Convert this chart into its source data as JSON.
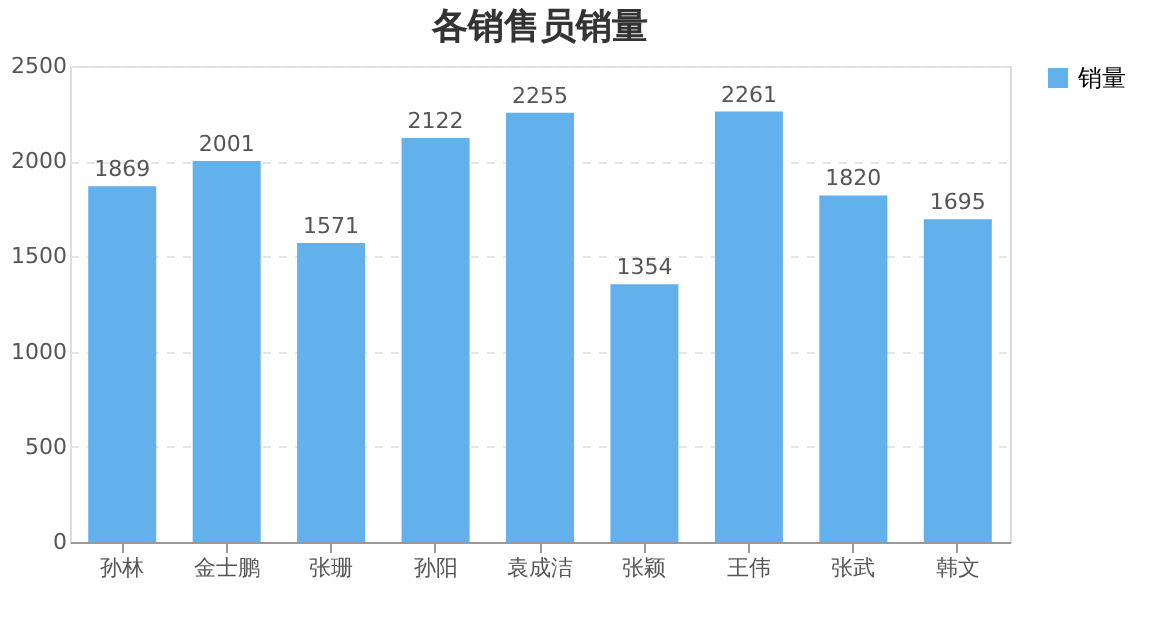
{
  "chart_data": {
    "type": "bar",
    "title": "各销售员销量",
    "categories": [
      "孙林",
      "金士鹏",
      "张珊",
      "孙阳",
      "袁成洁",
      "张颖",
      "王伟",
      "张武",
      "韩文"
    ],
    "series": [
      {
        "name": "销量",
        "color": "#62b0ec",
        "values": [
          1869,
          2001,
          1571,
          2122,
          2255,
          1354,
          2261,
          1820,
          1695
        ]
      }
    ],
    "ylim": [
      0,
      2500
    ],
    "yticks": [
      0,
      500,
      1000,
      1500,
      2000,
      2500
    ],
    "grid": "y",
    "legend": "right",
    "data_labels": true
  }
}
